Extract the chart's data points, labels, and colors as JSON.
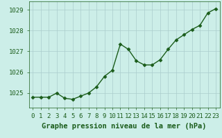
{
  "x": [
    0,
    1,
    2,
    3,
    4,
    5,
    6,
    7,
    8,
    9,
    10,
    11,
    12,
    13,
    14,
    15,
    16,
    17,
    18,
    19,
    20,
    21,
    22,
    23
  ],
  "y": [
    1024.8,
    1024.8,
    1024.8,
    1025.0,
    1024.75,
    1024.7,
    1024.85,
    1025.0,
    1025.3,
    1025.8,
    1026.1,
    1027.35,
    1027.1,
    1026.55,
    1026.35,
    1026.35,
    1026.6,
    1027.1,
    1027.55,
    1027.8,
    1028.05,
    1028.25,
    1028.85,
    1029.05
  ],
  "line_color": "#1a5c1a",
  "marker": "D",
  "marker_size": 2.5,
  "bg_color": "#cceee8",
  "grid_color": "#aacccc",
  "xlabel": "Graphe pression niveau de la mer (hPa)",
  "xlabel_fontsize": 7.5,
  "xlabel_color": "#1a5c1a",
  "ytick_labels": [
    1025,
    1026,
    1027,
    1028,
    1029
  ],
  "ylim": [
    1024.3,
    1029.4
  ],
  "xlim": [
    -0.5,
    23.5
  ],
  "tick_fontsize": 6.5,
  "linewidth": 1.0
}
